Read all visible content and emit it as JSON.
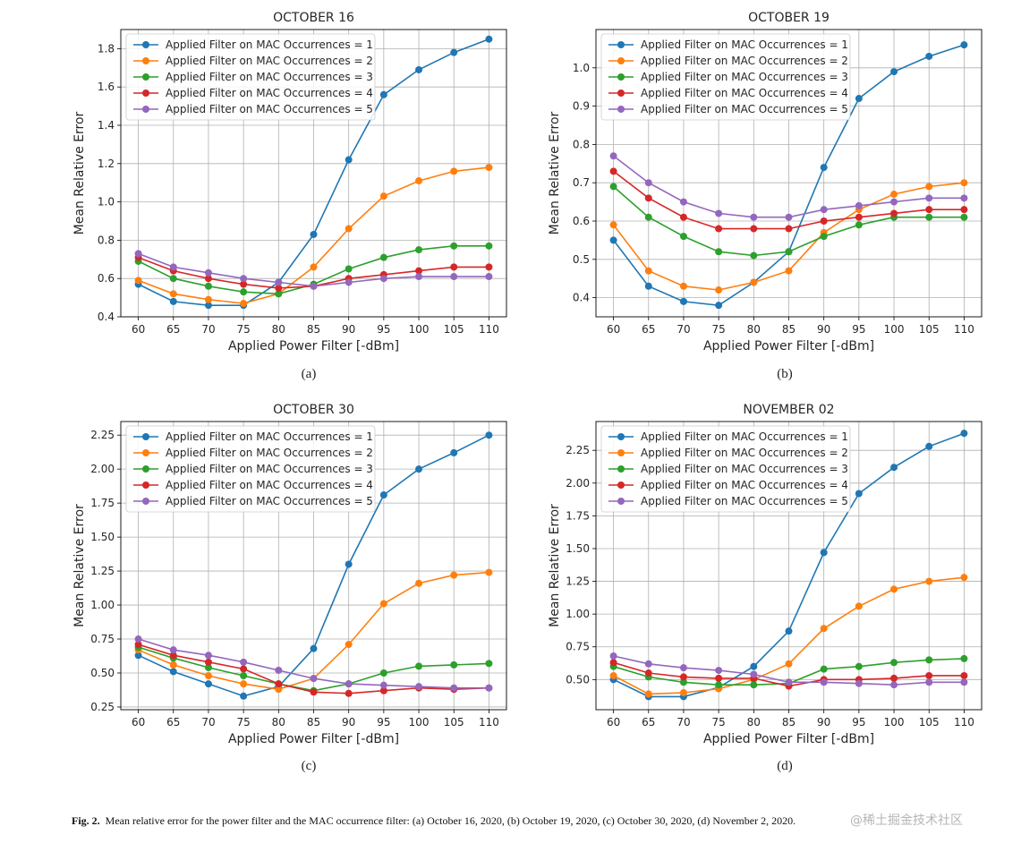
{
  "chart_data": [
    {
      "type": "line",
      "title": "OCTOBER 16",
      "xlabel": "Applied Power Filter [-dBm]",
      "ylabel": "Mean Relative Error",
      "x": [
        60,
        65,
        70,
        75,
        80,
        85,
        90,
        95,
        100,
        105,
        110
      ],
      "ylim": [
        0.4,
        1.9
      ],
      "yticks": [
        "0.4",
        "0.6",
        "0.8",
        "1.0",
        "1.2",
        "1.4",
        "1.6",
        "1.8"
      ],
      "ytick_values": [
        0.4,
        0.6,
        0.8,
        1.0,
        1.2,
        1.4,
        1.6,
        1.8
      ],
      "legend_position": "top-left",
      "grid": true,
      "series": [
        {
          "name": "Applied Filter on MAC Occurrences = 1",
          "color": "#1f77b4",
          "values": [
            0.57,
            0.48,
            0.46,
            0.46,
            0.58,
            0.83,
            1.22,
            1.56,
            1.69,
            1.78,
            1.85
          ]
        },
        {
          "name": "Applied Filter on MAC Occurrences = 2",
          "color": "#ff7f0e",
          "values": [
            0.59,
            0.52,
            0.49,
            0.47,
            0.52,
            0.66,
            0.86,
            1.03,
            1.11,
            1.16,
            1.18
          ]
        },
        {
          "name": "Applied Filter on MAC Occurrences = 3",
          "color": "#2ca02c",
          "values": [
            0.69,
            0.6,
            0.56,
            0.53,
            0.52,
            0.57,
            0.65,
            0.71,
            0.75,
            0.77,
            0.77
          ]
        },
        {
          "name": "Applied Filter on MAC Occurrences = 4",
          "color": "#d62728",
          "values": [
            0.71,
            0.64,
            0.6,
            0.57,
            0.55,
            0.56,
            0.6,
            0.62,
            0.64,
            0.66,
            0.66
          ]
        },
        {
          "name": "Applied Filter on MAC Occurrences = 5",
          "color": "#9467bd",
          "values": [
            0.73,
            0.66,
            0.63,
            0.6,
            0.58,
            0.56,
            0.58,
            0.6,
            0.61,
            0.61,
            0.61
          ]
        }
      ]
    },
    {
      "type": "line",
      "title": "OCTOBER 19",
      "xlabel": "Applied Power Filter [-dBm]",
      "ylabel": "Mean Relative Error",
      "x": [
        60,
        65,
        70,
        75,
        80,
        85,
        90,
        95,
        100,
        105,
        110
      ],
      "ylim": [
        0.35,
        1.1
      ],
      "yticks": [
        "0.4",
        "0.5",
        "0.6",
        "0.7",
        "0.8",
        "0.9",
        "1.0"
      ],
      "ytick_values": [
        0.4,
        0.5,
        0.6,
        0.7,
        0.8,
        0.9,
        1.0
      ],
      "legend_position": "top-left",
      "grid": true,
      "series": [
        {
          "name": "Applied Filter on MAC Occurrences = 1",
          "color": "#1f77b4",
          "values": [
            0.55,
            0.43,
            0.39,
            0.38,
            0.44,
            0.52,
            0.74,
            0.92,
            0.99,
            1.03,
            1.06
          ]
        },
        {
          "name": "Applied Filter on MAC Occurrences = 2",
          "color": "#ff7f0e",
          "values": [
            0.59,
            0.47,
            0.43,
            0.42,
            0.44,
            0.47,
            0.57,
            0.63,
            0.67,
            0.69,
            0.7
          ]
        },
        {
          "name": "Applied Filter on MAC Occurrences = 3",
          "color": "#2ca02c",
          "values": [
            0.69,
            0.61,
            0.56,
            0.52,
            0.51,
            0.52,
            0.56,
            0.59,
            0.61,
            0.61,
            0.61
          ]
        },
        {
          "name": "Applied Filter on MAC Occurrences = 4",
          "color": "#d62728",
          "values": [
            0.73,
            0.66,
            0.61,
            0.58,
            0.58,
            0.58,
            0.6,
            0.61,
            0.62,
            0.63,
            0.63
          ]
        },
        {
          "name": "Applied Filter on MAC Occurrences = 5",
          "color": "#9467bd",
          "values": [
            0.77,
            0.7,
            0.65,
            0.62,
            0.61,
            0.61,
            0.63,
            0.64,
            0.65,
            0.66,
            0.66
          ]
        }
      ]
    },
    {
      "type": "line",
      "title": "OCTOBER 30",
      "xlabel": "Applied Power Filter [-dBm]",
      "ylabel": "Mean Relative Error",
      "x": [
        60,
        65,
        70,
        75,
        80,
        85,
        90,
        95,
        100,
        105,
        110
      ],
      "ylim": [
        0.23,
        2.35
      ],
      "yticks": [
        "0.25",
        "0.50",
        "0.75",
        "1.00",
        "1.25",
        "1.50",
        "1.75",
        "2.00",
        "2.25"
      ],
      "ytick_values": [
        0.25,
        0.5,
        0.75,
        1.0,
        1.25,
        1.5,
        1.75,
        2.0,
        2.25
      ],
      "legend_position": "top-left",
      "grid": true,
      "series": [
        {
          "name": "Applied Filter on MAC Occurrences = 1",
          "color": "#1f77b4",
          "values": [
            0.63,
            0.51,
            0.42,
            0.33,
            0.4,
            0.68,
            1.3,
            1.81,
            2.0,
            2.12,
            2.25
          ]
        },
        {
          "name": "Applied Filter on MAC Occurrences = 2",
          "color": "#ff7f0e",
          "values": [
            0.67,
            0.56,
            0.48,
            0.42,
            0.38,
            0.46,
            0.71,
            1.01,
            1.16,
            1.22,
            1.24
          ]
        },
        {
          "name": "Applied Filter on MAC Occurrences = 3",
          "color": "#2ca02c",
          "values": [
            0.69,
            0.61,
            0.54,
            0.48,
            0.42,
            0.37,
            0.42,
            0.5,
            0.55,
            0.56,
            0.57
          ]
        },
        {
          "name": "Applied Filter on MAC Occurrences = 4",
          "color": "#d62728",
          "values": [
            0.71,
            0.63,
            0.58,
            0.53,
            0.42,
            0.36,
            0.35,
            0.37,
            0.39,
            0.38,
            0.39
          ]
        },
        {
          "name": "Applied Filter on MAC Occurrences = 5",
          "color": "#9467bd",
          "values": [
            0.75,
            0.67,
            0.63,
            0.58,
            0.52,
            0.46,
            0.42,
            0.41,
            0.4,
            0.39,
            0.39
          ]
        }
      ]
    },
    {
      "type": "line",
      "title": "NOVEMBER 02",
      "xlabel": "Applied Power Filter [-dBm]",
      "ylabel": "Mean Relative Error",
      "x": [
        60,
        65,
        70,
        75,
        80,
        85,
        90,
        95,
        100,
        105,
        110
      ],
      "ylim": [
        0.27,
        2.47
      ],
      "yticks": [
        "0.50",
        "0.75",
        "1.00",
        "1.25",
        "1.50",
        "1.75",
        "2.00",
        "2.25"
      ],
      "ytick_values": [
        0.5,
        0.75,
        1.0,
        1.25,
        1.5,
        1.75,
        2.0,
        2.25
      ],
      "legend_position": "top-left",
      "grid": true,
      "series": [
        {
          "name": "Applied Filter on MAC Occurrences = 1",
          "color": "#1f77b4",
          "values": [
            0.5,
            0.37,
            0.37,
            0.44,
            0.6,
            0.87,
            1.47,
            1.92,
            2.12,
            2.28,
            2.38
          ]
        },
        {
          "name": "Applied Filter on MAC Occurrences = 2",
          "color": "#ff7f0e",
          "values": [
            0.53,
            0.39,
            0.4,
            0.43,
            0.5,
            0.62,
            0.89,
            1.06,
            1.19,
            1.25,
            1.28
          ]
        },
        {
          "name": "Applied Filter on MAC Occurrences = 3",
          "color": "#2ca02c",
          "values": [
            0.6,
            0.52,
            0.48,
            0.46,
            0.46,
            0.47,
            0.58,
            0.6,
            0.63,
            0.65,
            0.66
          ]
        },
        {
          "name": "Applied Filter on MAC Occurrences = 4",
          "color": "#d62728",
          "values": [
            0.63,
            0.55,
            0.52,
            0.51,
            0.51,
            0.45,
            0.5,
            0.5,
            0.51,
            0.53,
            0.53
          ]
        },
        {
          "name": "Applied Filter on MAC Occurrences = 5",
          "color": "#9467bd",
          "values": [
            0.68,
            0.62,
            0.59,
            0.57,
            0.54,
            0.48,
            0.48,
            0.47,
            0.46,
            0.48,
            0.48
          ]
        }
      ]
    }
  ],
  "subfigure_labels": [
    "(a)",
    "(b)",
    "(c)",
    "(d)"
  ],
  "caption": {
    "label": "Fig. 2.",
    "text": "Mean relative error for the power filter and the MAC occurrence filter: (a) October 16, 2020, (b) October 19, 2020, (c) October 30, 2020, (d) November 2, 2020."
  },
  "watermark": "@稀土掘金技术社区"
}
